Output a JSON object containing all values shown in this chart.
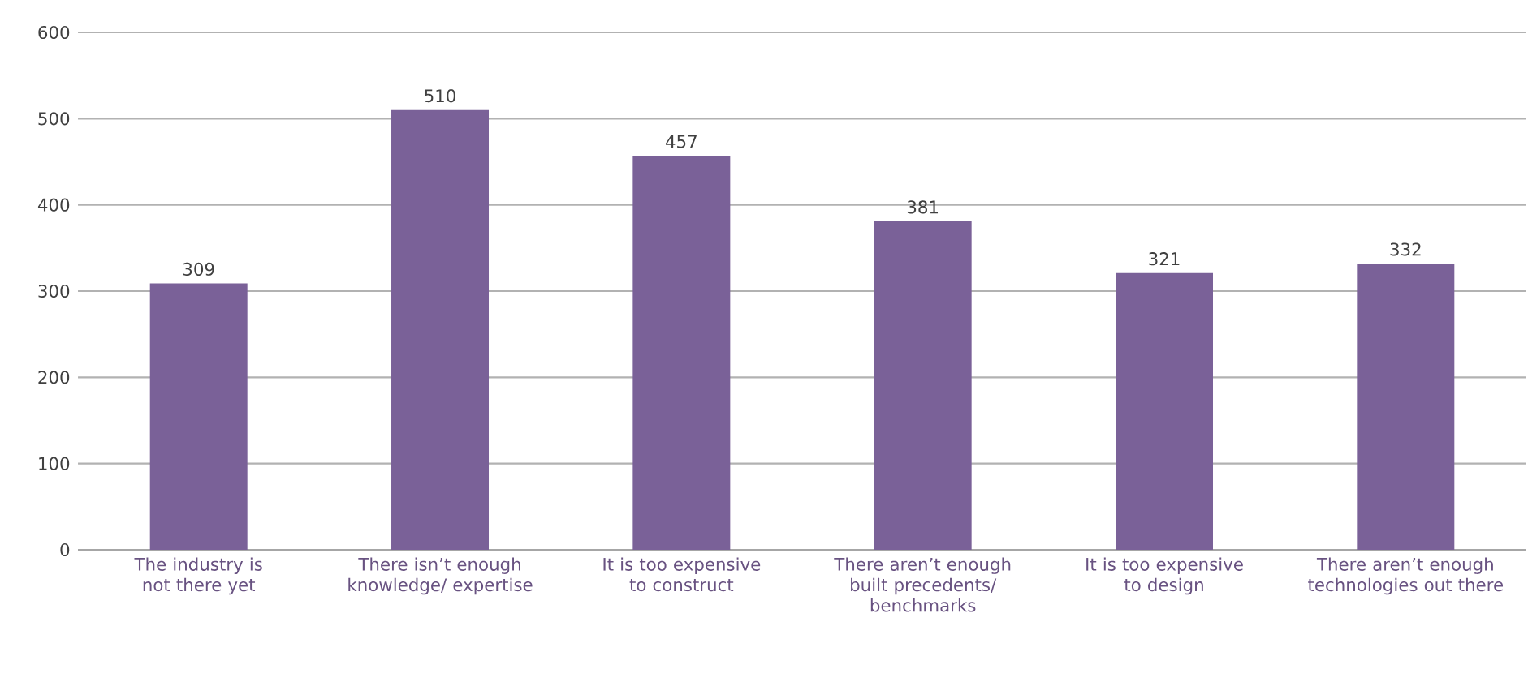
{
  "chart_data": {
    "type": "bar",
    "categories": [
      "The industry is not there yet",
      "There isn’t enough knowledge/ expertise",
      "It is too expensive to construct",
      "There aren’t enough built precedents/ benchmarks",
      "It is too expensive to design",
      "There aren’t enough technologies out there"
    ],
    "values": [
      309,
      510,
      457,
      381,
      321,
      332
    ],
    "color": "#7a6198",
    "ylim": [
      0,
      600
    ],
    "yticks": [
      0,
      100,
      200,
      300,
      400,
      500,
      600
    ],
    "grid": "y",
    "data_labels": true
  }
}
